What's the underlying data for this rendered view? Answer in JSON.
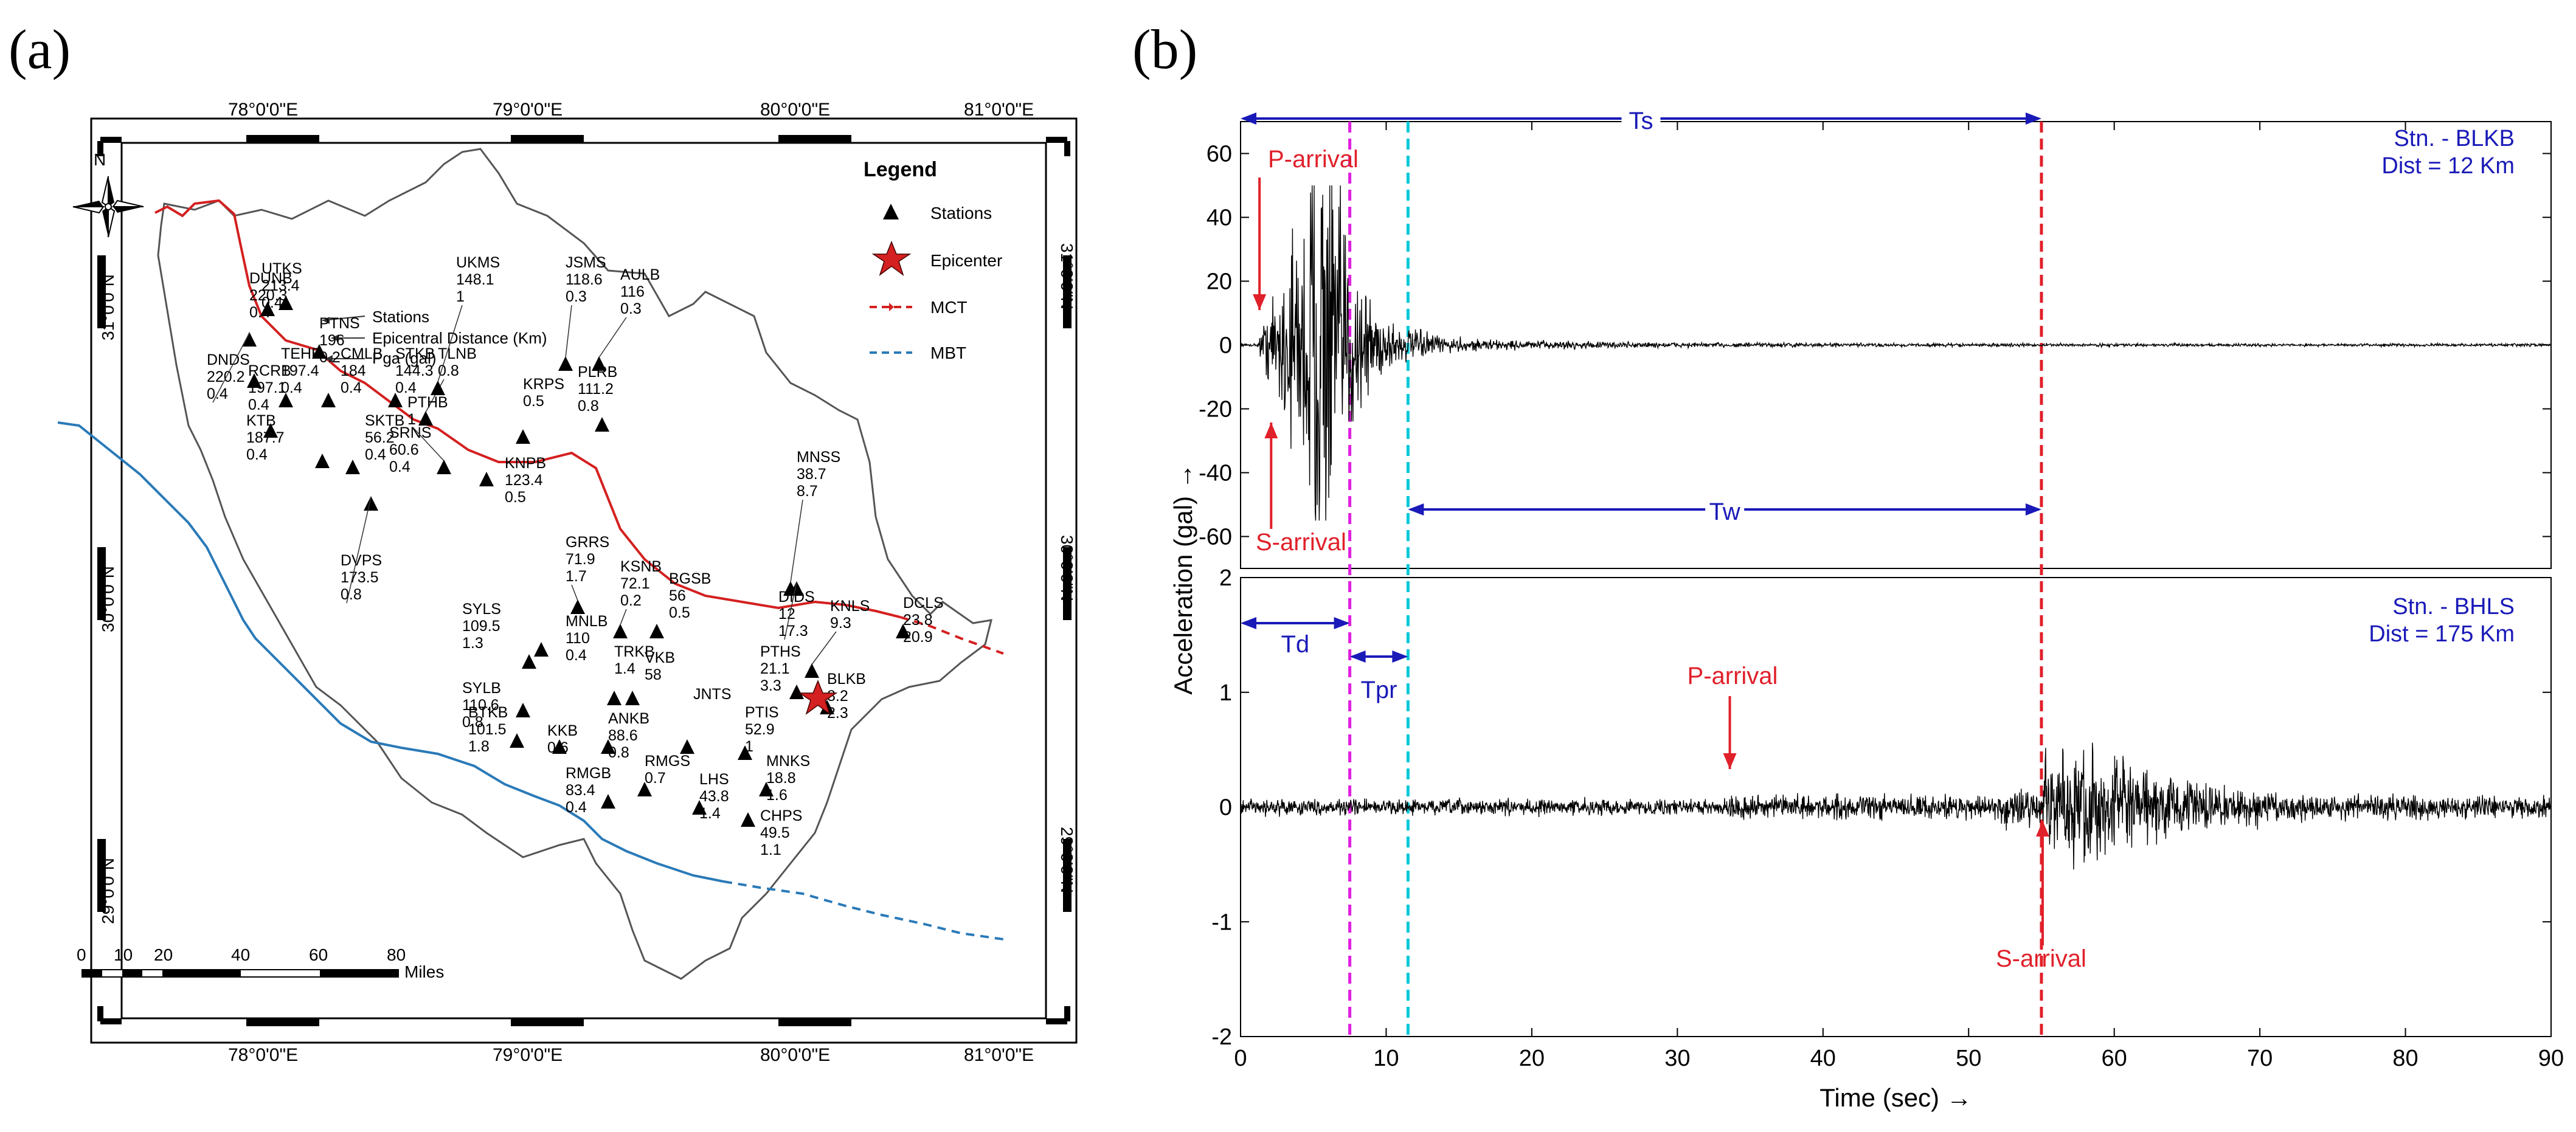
{
  "panel_labels": {
    "a": "(a)",
    "b": "(b)"
  },
  "map": {
    "lon_labels": [
      "78°0'0\"E",
      "79°0'0\"E",
      "80°0'0\"E",
      "81°0'0\"E"
    ],
    "lat_labels": [
      "31°0'0\"N",
      "30°0'0\"N",
      "29°0'0\"N"
    ],
    "north": "N",
    "legend": {
      "title": "Legend",
      "stations": "Stations",
      "epicenter": "Epicenter",
      "mct": "MCT",
      "mbt": "MBT"
    },
    "callouts": {
      "stations": "Stations",
      "distance": "Epicentral Distance (Km)",
      "pga": "Pga (gal)"
    },
    "scale": {
      "ticks": [
        "0",
        "10",
        "20",
        "40",
        "60",
        "80"
      ],
      "unit": "Miles"
    },
    "stations": [
      {
        "id": "UTKS",
        "dist": "213.4",
        "pga": "0.4"
      },
      {
        "id": "DUNB",
        "dist": "220.3",
        "pga": "0.4"
      },
      {
        "id": "DNDS",
        "dist": "220.2",
        "pga": "0.4"
      },
      {
        "id": "PTNS",
        "dist": "196",
        "pga": "0.2"
      },
      {
        "id": "RCRB",
        "dist": "197.1",
        "pga": "0.4"
      },
      {
        "id": "TEHB",
        "dist": "197.4",
        "pga": "0.4"
      },
      {
        "id": "CMLB",
        "dist": "184",
        "pga": "0.4"
      },
      {
        "id": "KTB",
        "dist": "187.7",
        "pga": "0.4"
      },
      {
        "id": "STKB",
        "dist": "144.3",
        "pga": "0.4"
      },
      {
        "id": "TLNB",
        "dist": "",
        "pga": "0.8"
      },
      {
        "id": "UKMS",
        "dist": "148.1",
        "pga": "1"
      },
      {
        "id": "JSMS",
        "dist": "118.6",
        "pga": "0.3"
      },
      {
        "id": "AULB",
        "dist": "116",
        "pga": "0.3"
      },
      {
        "id": "PLRB",
        "dist": "111.2",
        "pga": "0.8"
      },
      {
        "id": "KRPS",
        "dist": "",
        "pga": "0.5"
      },
      {
        "id": "SKTB",
        "dist": "56.2",
        "pga": "0.4"
      },
      {
        "id": "SRNS",
        "dist": "60.6",
        "pga": "0.4"
      },
      {
        "id": "PTHB",
        "dist": "",
        "pga": "1"
      },
      {
        "id": "KNPB",
        "dist": "123.4",
        "pga": "0.5"
      },
      {
        "id": "DVPS",
        "dist": "173.5",
        "pga": "0.8"
      },
      {
        "id": "MNSS",
        "dist": "38.7",
        "pga": "8.7"
      },
      {
        "id": "DIDS",
        "dist": "12",
        "pga": "17.3"
      },
      {
        "id": "DCLS",
        "dist": "23.8",
        "pga": "20.9"
      },
      {
        "id": "GRRS",
        "dist": "71.9",
        "pga": "1.7"
      },
      {
        "id": "KSNB",
        "dist": "72.1",
        "pga": "0.2"
      },
      {
        "id": "BGSB",
        "dist": "56",
        "pga": "0.5"
      },
      {
        "id": "SYLS",
        "dist": "109.5",
        "pga": "1.3"
      },
      {
        "id": "MNLB",
        "dist": "110",
        "pga": "0.4"
      },
      {
        "id": "SYLB",
        "dist": "110.6",
        "pga": "0.8"
      },
      {
        "id": "KNLS",
        "dist": "9.3",
        "pga": ""
      },
      {
        "id": "PTHS",
        "dist": "21.1",
        "pga": "3.3"
      },
      {
        "id": "BLKB",
        "dist": "8.2",
        "pga": "2.3"
      },
      {
        "id": "TRKB",
        "dist": "1.4",
        "pga": ""
      },
      {
        "id": "VKB",
        "dist": "58",
        "pga": ""
      },
      {
        "id": "JNTS",
        "dist": "",
        "pga": ""
      },
      {
        "id": "PTIS",
        "dist": "52.9",
        "pga": "1"
      },
      {
        "id": "MNKS",
        "dist": "18.8",
        "pga": "1.6"
      },
      {
        "id": "BTKB",
        "dist": "101.5",
        "pga": "1.8"
      },
      {
        "id": "KKB",
        "dist": "",
        "pga": "0.6"
      },
      {
        "id": "ANKB",
        "dist": "88.6",
        "pga": "0.8"
      },
      {
        "id": "RMGB",
        "dist": "83.4",
        "pga": "0.4"
      },
      {
        "id": "RMGS",
        "dist": "",
        "pga": "0.7"
      },
      {
        "id": "LHS",
        "dist": "43.8",
        "pga": "1.4"
      },
      {
        "id": "CHPS",
        "dist": "49.5",
        "pga": "1.1"
      }
    ]
  },
  "chart_data": {
    "type": "line",
    "title": "",
    "xlabel": "Time (sec) →",
    "ylabel": "Acceleration (gal) →",
    "xlim": [
      0,
      90
    ],
    "x_ticks": [
      "0",
      "10",
      "20",
      "30",
      "40",
      "50",
      "60",
      "70",
      "80",
      "90"
    ],
    "panels": [
      {
        "station": "Stn. - BLKB",
        "distance": "Dist = 12 Km",
        "ylim": [
          -70,
          70
        ],
        "y_ticks": [
          "-60",
          "-40",
          "-20",
          "0",
          "20",
          "40",
          "60"
        ],
        "p_arrival_sec": 1.3,
        "s_arrival_sec": 2.1,
        "p_label": "P-arrival",
        "s_label": "S-arrival",
        "peak_positive_gal": 50,
        "peak_negative_gal": -55
      },
      {
        "station": "Stn. - BHLS",
        "distance": "Dist = 175 Km",
        "ylim": [
          -2,
          2
        ],
        "y_ticks": [
          "-2",
          "-1",
          "0",
          "1",
          "2"
        ],
        "p_arrival_sec": 33.6,
        "s_arrival_sec": 55.0,
        "p_label": "P-arrival",
        "s_label": "S-arrival",
        "peak_positive_gal": 0.6,
        "peak_negative_gal": -0.6
      }
    ],
    "markers": [
      {
        "label": "Ts",
        "from": 0,
        "to": 55
      },
      {
        "label": "Tw",
        "from": 11.5,
        "to": 55
      },
      {
        "label": "Td",
        "from": 0,
        "to": 7.5
      },
      {
        "label": "Tpr",
        "from": 7.5,
        "to": 11.5
      }
    ],
    "vertical_lines": [
      {
        "time": 7.5,
        "color": "#e020e0"
      },
      {
        "time": 11.5,
        "color": "#00c8d8"
      },
      {
        "time": 55,
        "color": "#e0202a"
      }
    ],
    "colors": {
      "trace": "#000000",
      "arrow": "#1a1ab8",
      "red": "#e0202a"
    }
  }
}
